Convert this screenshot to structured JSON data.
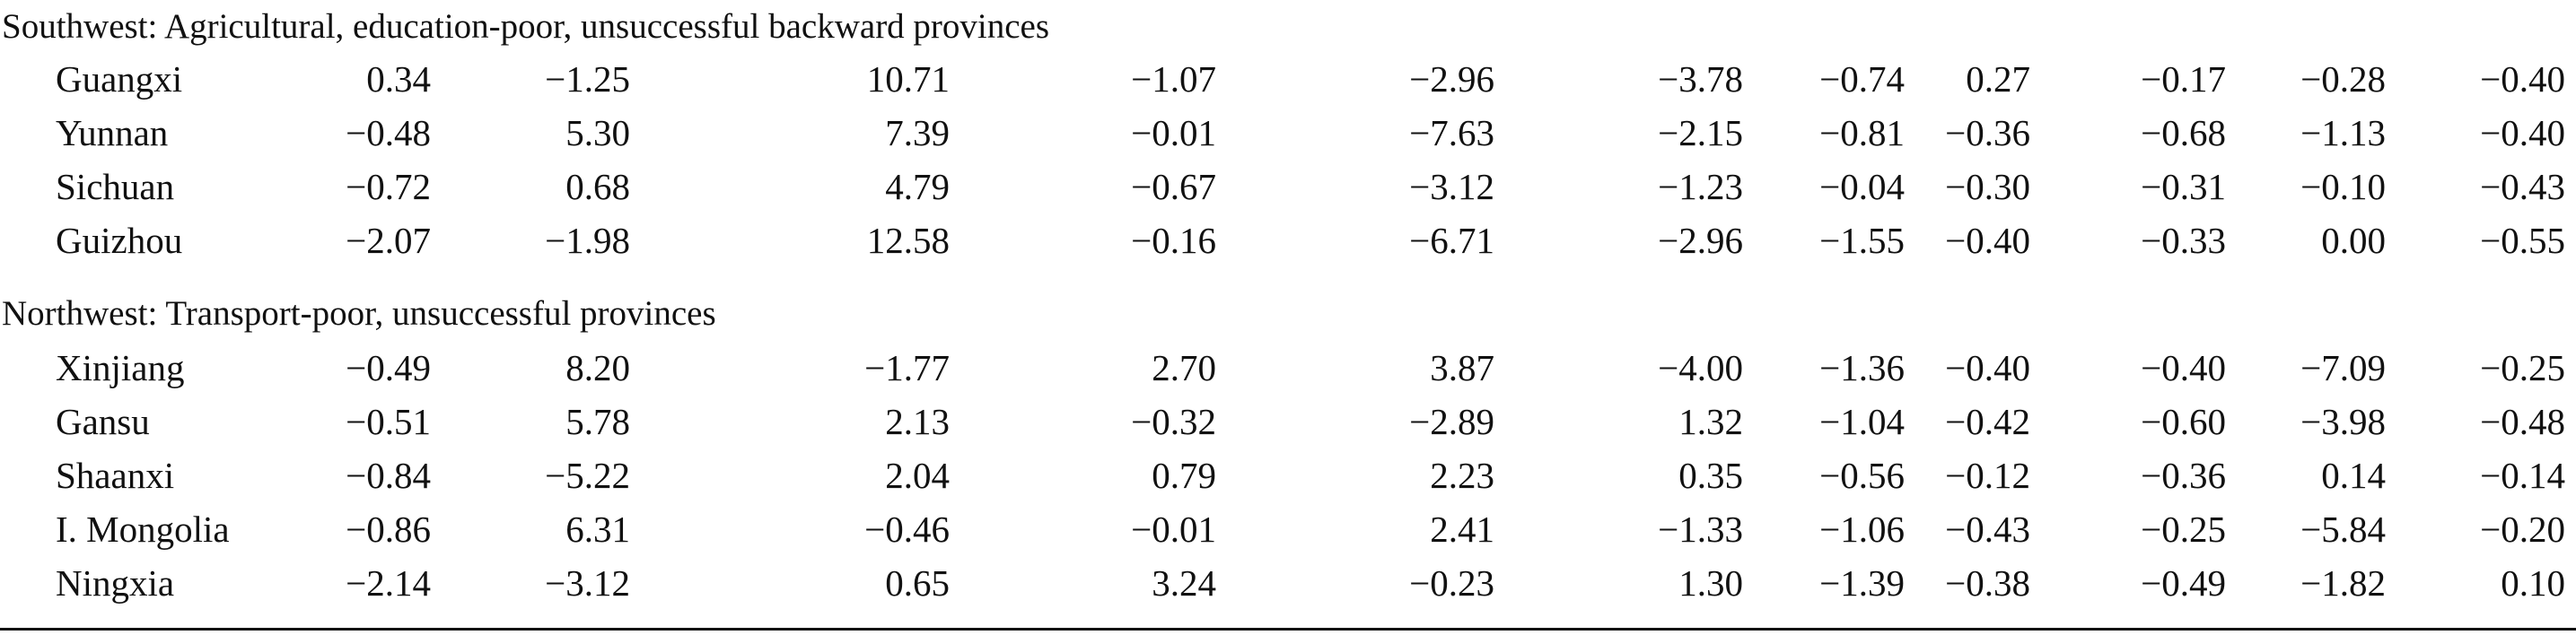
{
  "groups": [
    {
      "title": "Southwest: Agricultural, education-poor, unsuccessful backward provinces",
      "rows": [
        {
          "name": "Guangxi",
          "values": [
            "0.34",
            "−1.25",
            "10.71",
            "−1.07",
            "−2.96",
            "−3.78",
            "−0.74",
            "0.27",
            "−0.17",
            "−0.28",
            "−0.40"
          ]
        },
        {
          "name": "Yunnan",
          "values": [
            "−0.48",
            "5.30",
            "7.39",
            "−0.01",
            "−7.63",
            "−2.15",
            "−0.81",
            "−0.36",
            "−0.68",
            "−1.13",
            "−0.40"
          ]
        },
        {
          "name": "Sichuan",
          "values": [
            "−0.72",
            "0.68",
            "4.79",
            "−0.67",
            "−3.12",
            "−1.23",
            "−0.04",
            "−0.30",
            "−0.31",
            "−0.10",
            "−0.43"
          ]
        },
        {
          "name": "Guizhou",
          "values": [
            "−2.07",
            "−1.98",
            "12.58",
            "−0.16",
            "−6.71",
            "−2.96",
            "−1.55",
            "−0.40",
            "−0.33",
            "0.00",
            "−0.55"
          ]
        }
      ]
    },
    {
      "title": "Northwest: Transport-poor, unsuccessful provinces",
      "rows": [
        {
          "name": "Xinjiang",
          "values": [
            "−0.49",
            "8.20",
            "−1.77",
            "2.70",
            "3.87",
            "−4.00",
            "−1.36",
            "−0.40",
            "−0.40",
            "−7.09",
            "−0.25"
          ]
        },
        {
          "name": "Gansu",
          "values": [
            "−0.51",
            "5.78",
            "2.13",
            "−0.32",
            "−2.89",
            "1.32",
            "−1.04",
            "−0.42",
            "−0.60",
            "−3.98",
            "−0.48"
          ]
        },
        {
          "name": "Shaanxi",
          "values": [
            "−0.84",
            "−5.22",
            "2.04",
            "0.79",
            "2.23",
            "0.35",
            "−0.56",
            "−0.12",
            "−0.36",
            "0.14",
            "−0.14"
          ]
        },
        {
          "name": "I. Mongolia",
          "values": [
            "−0.86",
            "6.31",
            "−0.46",
            "−0.01",
            "2.41",
            "−1.33",
            "−1.06",
            "−0.43",
            "−0.25",
            "−5.84",
            "−0.20"
          ]
        },
        {
          "name": "Ningxia",
          "values": [
            "−2.14",
            "−3.12",
            "0.65",
            "3.24",
            "−0.23",
            "1.30",
            "−1.39",
            "−0.38",
            "−0.49",
            "−1.82",
            "0.10"
          ]
        }
      ]
    }
  ]
}
